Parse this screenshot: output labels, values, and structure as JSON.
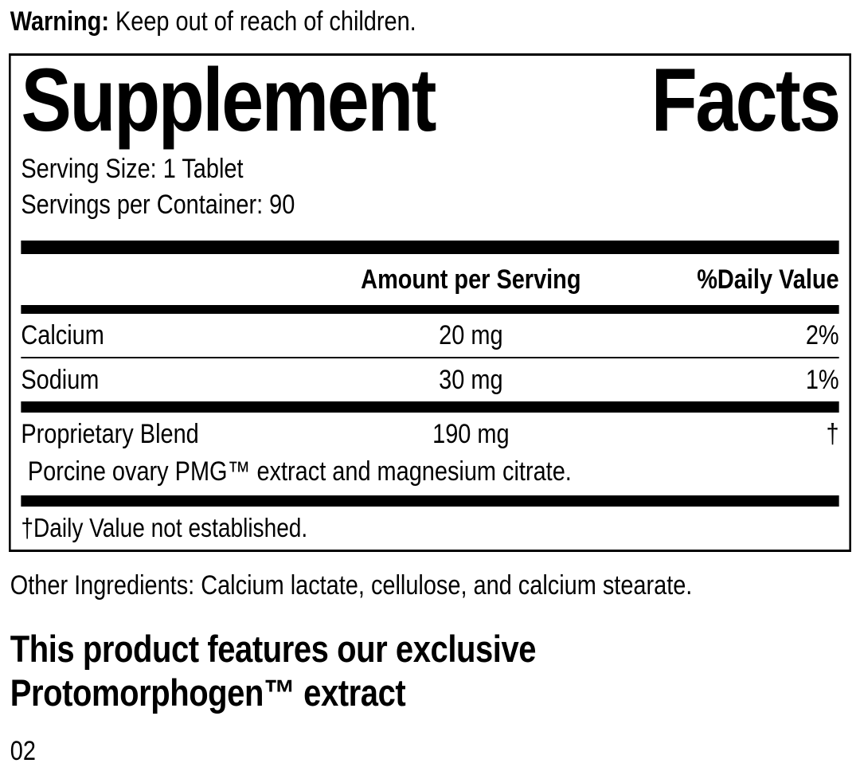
{
  "warning": {
    "label": "Warning:",
    "text": " Keep out of reach of children."
  },
  "supplement_facts": {
    "title_word1": "Supplement",
    "title_word2": "Facts",
    "serving_size": "Serving Size: 1 Tablet",
    "servings_per_container": "Servings per Container: 90",
    "columns": {
      "amount_header": "Amount per Serving",
      "daily_value_header": "%Daily Value"
    },
    "rows": [
      {
        "name": "Calcium",
        "amount": "20 mg",
        "daily_value": "2%"
      },
      {
        "name": "Sodium",
        "amount": "30 mg",
        "daily_value": "1%"
      },
      {
        "name": "Proprietary Blend",
        "amount": "190 mg",
        "daily_value": "†",
        "description": "Porcine ovary PMG™ extract and magnesium citrate."
      }
    ],
    "footnote": "†Daily Value not established."
  },
  "other_ingredients": "Other Ingredients: Calcium lactate, cellulose, and calcium stearate.",
  "feature_headline": {
    "line1": "This product features our exclusive",
    "line2": "Protomorphogen™ extract"
  },
  "page_code": "02",
  "colors": {
    "ink": "#000000",
    "background": "#ffffff"
  }
}
